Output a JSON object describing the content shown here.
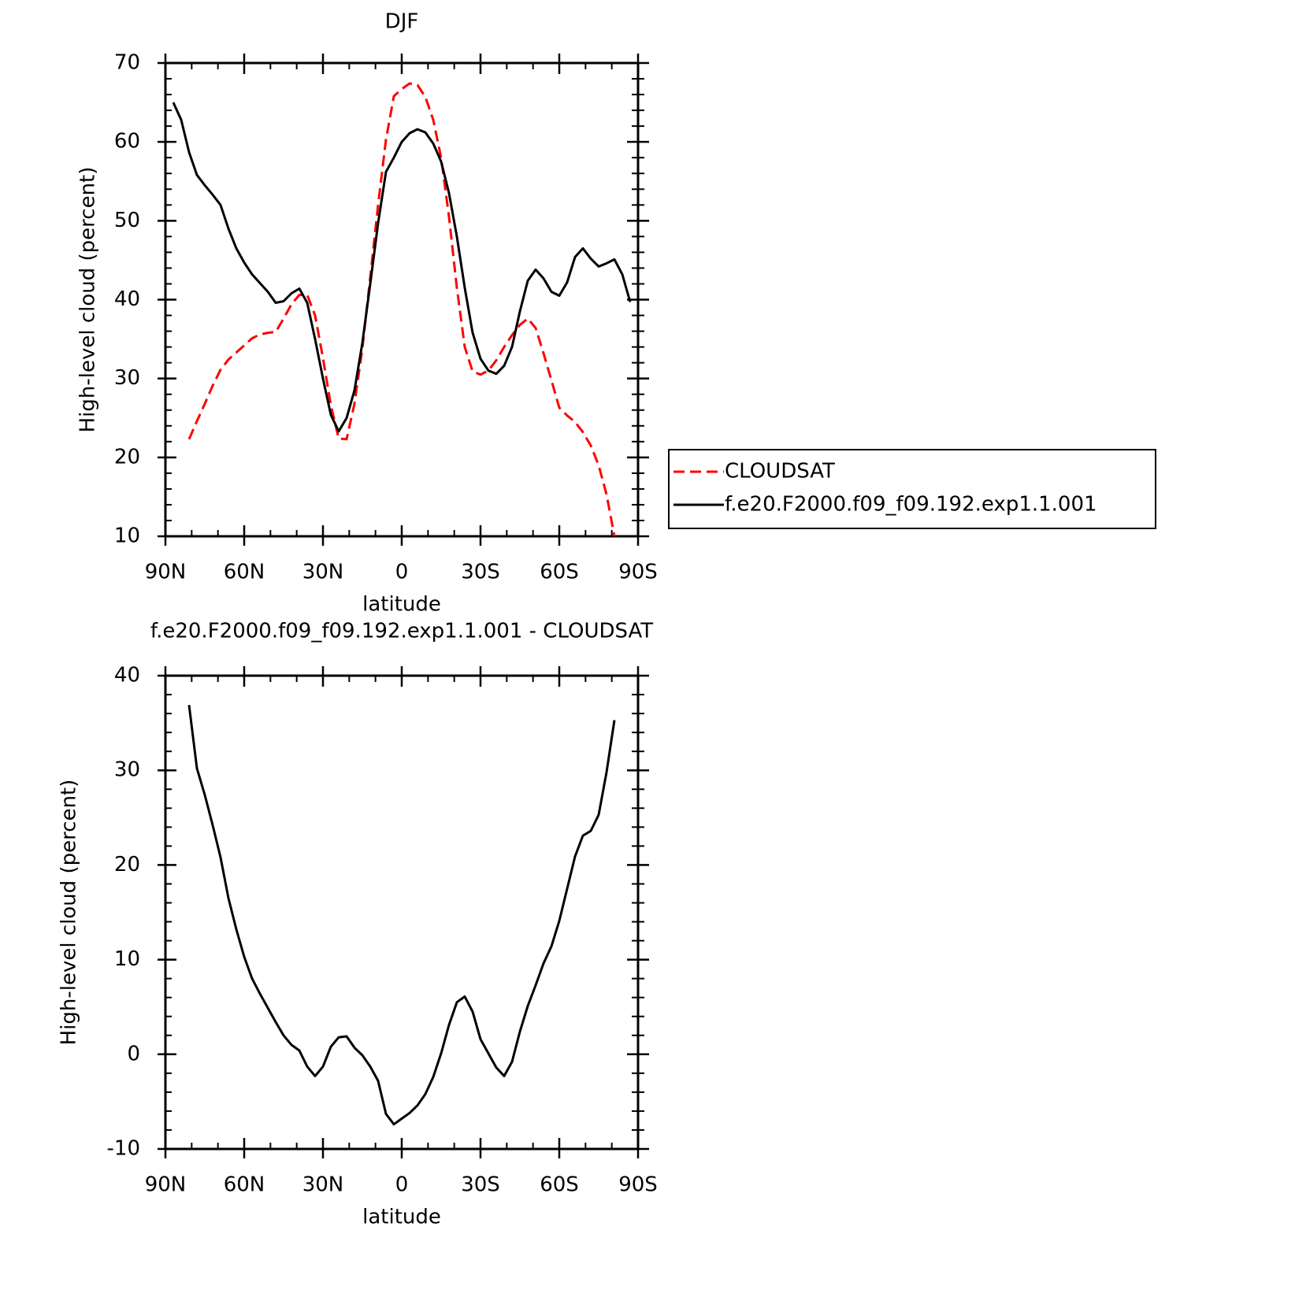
{
  "chart_data": [
    {
      "type": "line",
      "title": "DJF",
      "xlabel": "latitude",
      "ylabel": "High-level cloud (percent)",
      "x": [
        87,
        84,
        81,
        78,
        75,
        72,
        69,
        66,
        63,
        60,
        57,
        54,
        51,
        48,
        45,
        42,
        39,
        36,
        33,
        30,
        27,
        24,
        21,
        18,
        15,
        12,
        9,
        6,
        3,
        0,
        -3,
        -6,
        -9,
        -12,
        -15,
        -18,
        -21,
        -24,
        -27,
        -30,
        -33,
        -36,
        -39,
        -42,
        -45,
        -48,
        -51,
        -54,
        -57,
        -60,
        -63,
        -66,
        -69,
        -72,
        -75,
        -78,
        -81,
        -84,
        -87
      ],
      "series": [
        {
          "name": "CLOUDSAT",
          "color": "#ff0000",
          "dash": true,
          "values": [
            null,
            null,
            22.3,
            24.6,
            26.8,
            29.1,
            31.1,
            32.4,
            33.3,
            34.2,
            35.1,
            35.6,
            35.8,
            35.9,
            37.6,
            39.4,
            40.6,
            40.6,
            38,
            32.6,
            26.6,
            22.4,
            22.3,
            26.8,
            33.8,
            42.8,
            52,
            60.3,
            65.8,
            66.7,
            67.4,
            67.2,
            65.7,
            62.8,
            58,
            50.5,
            41.5,
            34,
            30.9,
            30.5,
            31,
            32.3,
            34,
            35.5,
            36.8,
            37.6,
            36.4,
            33.2,
            29.8,
            26.3,
            25.3,
            24.5,
            23.2,
            21.5,
            19,
            15.3,
            10,
            null,
            null
          ]
        },
        {
          "name": "f.e20.F2000.f09_f09.192.exp1.1.001",
          "color": "#000000",
          "dash": false,
          "values": [
            65,
            62.8,
            58.7,
            55.8,
            54.5,
            53.3,
            52,
            49,
            46.5,
            44.7,
            43.2,
            42.1,
            41,
            39.6,
            39.8,
            40.8,
            41.4,
            39.6,
            35,
            30,
            25.4,
            23.3,
            25,
            28.5,
            34.5,
            42,
            49.7,
            56.2,
            58,
            60,
            61.1,
            61.6,
            61.2,
            59.8,
            57.5,
            53.5,
            48,
            41.5,
            35.8,
            32.5,
            31,
            30.6,
            31.6,
            34,
            38.5,
            42.4,
            43.8,
            42.7,
            41,
            40.5,
            42.2,
            45.4,
            46.5,
            45.2,
            44.2,
            44.6,
            45.1,
            43.2,
            39.7
          ]
        }
      ],
      "xlim": [
        90,
        -90
      ],
      "xticks": [
        {
          "value": 90,
          "label": "90N"
        },
        {
          "value": 60,
          "label": "60N"
        },
        {
          "value": 30,
          "label": "30N"
        },
        0,
        {
          "value": -30,
          "label": "30S"
        },
        {
          "value": -60,
          "label": "60S"
        },
        {
          "value": -90,
          "label": "90S"
        }
      ],
      "ylim": [
        10,
        70
      ],
      "yticks": [
        10,
        20,
        30,
        40,
        50,
        60,
        70
      ],
      "legend": "right"
    },
    {
      "type": "line",
      "title": "f.e20.F2000.f09_f09.192.exp1.1.001 - CLOUDSAT",
      "xlabel": "latitude",
      "ylabel": "High-level cloud (percent)",
      "x": [
        87,
        84,
        81,
        78,
        75,
        72,
        69,
        66,
        63,
        60,
        57,
        54,
        51,
        48,
        45,
        42,
        39,
        36,
        33,
        30,
        27,
        24,
        21,
        18,
        15,
        12,
        9,
        6,
        3,
        0,
        -3,
        -6,
        -9,
        -12,
        -15,
        -18,
        -21,
        -24,
        -27,
        -30,
        -33,
        -36,
        -39,
        -42,
        -45,
        -48,
        -51,
        -54,
        -57,
        -60,
        -63,
        -66,
        -69,
        -72,
        -75,
        -78,
        -81,
        -84,
        -87
      ],
      "values": [
        null,
        null,
        36.9,
        30.2,
        27.4,
        24.2,
        20.8,
        16.5,
        13.2,
        10.3,
        8,
        6.4,
        4.9,
        3.4,
        2,
        1,
        0.4,
        -1.3,
        -2.3,
        -1.3,
        0.8,
        1.8,
        1.9,
        0.7,
        -0.1,
        -1.3,
        -2.8,
        -6.3,
        -7.4,
        -6.8,
        -6.2,
        -5.4,
        -4.2,
        -2.4,
        0.1,
        3.1,
        5.5,
        6.1,
        4.5,
        1.6,
        0.1,
        -1.4,
        -2.3,
        -0.8,
        2.4,
        5.1,
        7.3,
        9.6,
        11.4,
        14.1,
        17.5,
        20.9,
        23.1,
        23.6,
        25.3,
        29.8,
        35.3,
        null,
        null
      ],
      "color": "#000000",
      "xlim": [
        90,
        -90
      ],
      "xticks": [
        {
          "value": 90,
          "label": "90N"
        },
        {
          "value": 60,
          "label": "60N"
        },
        {
          "value": 30,
          "label": "30N"
        },
        0,
        {
          "value": -30,
          "label": "30S"
        },
        {
          "value": -60,
          "label": "60S"
        },
        {
          "value": -90,
          "label": "90S"
        }
      ],
      "ylim": [
        -10,
        40
      ],
      "yticks": [
        -10,
        0,
        10,
        20,
        30,
        40
      ]
    }
  ]
}
